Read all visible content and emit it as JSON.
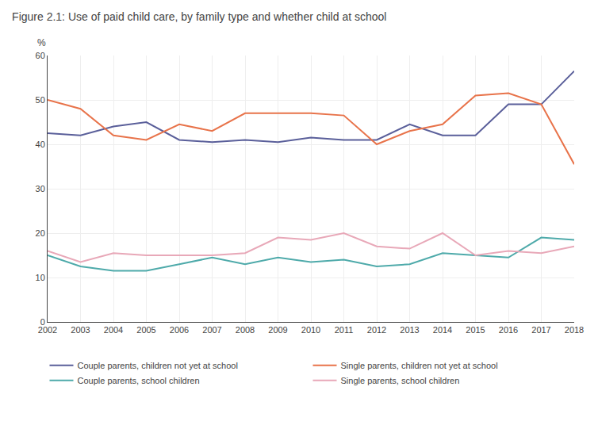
{
  "chart_data": {
    "type": "line",
    "title": "Figure 2.1: Use of paid child care, by family type and whether child at school",
    "ylabel": "%",
    "x": [
      2002,
      2003,
      2004,
      2005,
      2006,
      2007,
      2008,
      2009,
      2010,
      2011,
      2012,
      2013,
      2014,
      2015,
      2016,
      2017,
      2018
    ],
    "series": [
      {
        "name": "Couple parents, children not yet at school",
        "color": "#5a5f9a",
        "values": [
          42.5,
          42,
          44,
          45,
          41,
          40.5,
          41,
          40.5,
          41.5,
          41,
          41,
          44.5,
          42,
          42,
          49,
          49,
          56.5
        ]
      },
      {
        "name": "Single parents, children not yet at school",
        "color": "#e8734a",
        "values": [
          50,
          48,
          42,
          41,
          44.5,
          43,
          47,
          47,
          47,
          46.5,
          40,
          43,
          44.5,
          51,
          51.5,
          49,
          35.5
        ]
      },
      {
        "name": "Couple parents, school children",
        "color": "#4eaaaa",
        "values": [
          15,
          12.5,
          11.5,
          11.5,
          13,
          14.5,
          13,
          14.5,
          13.5,
          14,
          12.5,
          13,
          15.5,
          15,
          14.5,
          19,
          18.5
        ]
      },
      {
        "name": "Single parents, school children",
        "color": "#e8a8b8",
        "values": [
          16,
          13.5,
          15.5,
          15,
          15,
          15,
          15.5,
          19,
          18.5,
          20,
          17,
          16.5,
          20,
          15,
          16,
          15.5,
          17
        ]
      }
    ],
    "xlim": [
      2002,
      2018
    ],
    "xticks": [
      2002,
      2003,
      2004,
      2005,
      2006,
      2007,
      2008,
      2009,
      2010,
      2011,
      2012,
      2013,
      2014,
      2015,
      2016,
      2017,
      2018
    ],
    "ylim": [
      0,
      60
    ],
    "yticks": [
      0,
      10,
      20,
      30,
      40,
      50,
      60
    ],
    "grid": true,
    "legend": "bottom"
  }
}
